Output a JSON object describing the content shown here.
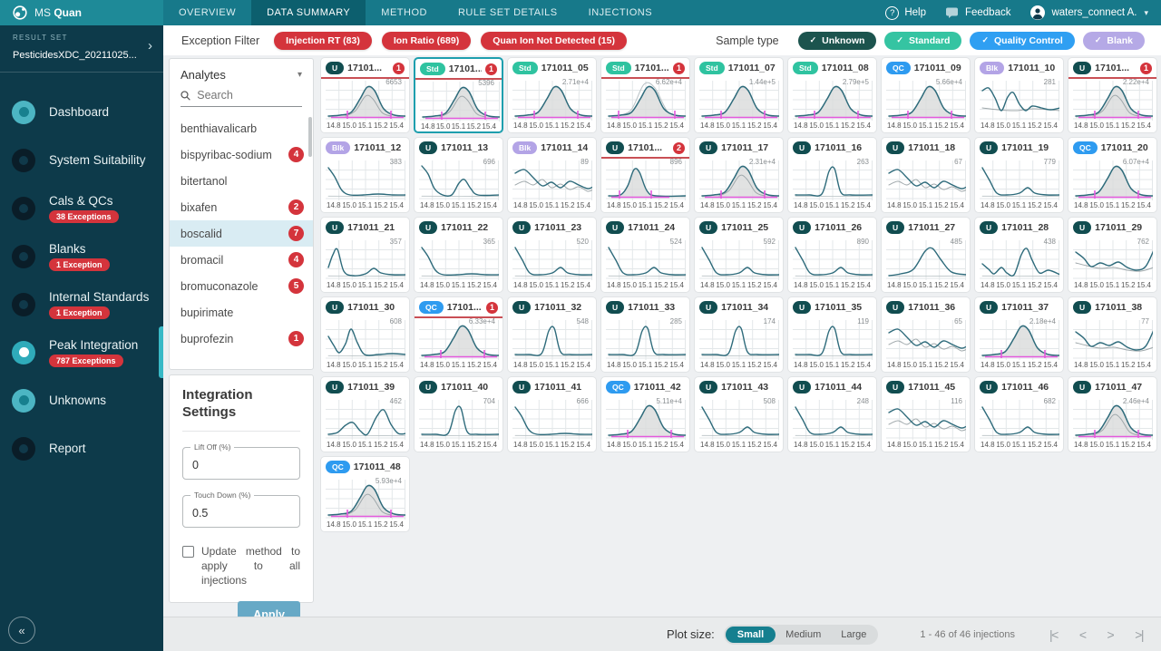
{
  "topbar": {
    "brand_prefix": "MS",
    "brand_bold": "Quan",
    "tabs": [
      {
        "label": "OVERVIEW",
        "active": false
      },
      {
        "label": "DATA SUMMARY",
        "active": true
      },
      {
        "label": "METHOD",
        "active": false
      },
      {
        "label": "RULE SET DETAILS",
        "active": false
      },
      {
        "label": "INJECTIONS",
        "active": false
      }
    ],
    "help_label": "Help",
    "feedback_label": "Feedback",
    "user_label": "waters_connect A."
  },
  "sidebar": {
    "result_set_label": "RESULT SET",
    "result_set_value": "PesticidesXDC_20211025...",
    "items": [
      {
        "label": "Dashboard",
        "badge": null,
        "icon": "teal-dot",
        "active": false
      },
      {
        "label": "System Suitability",
        "badge": null,
        "icon": "dark-donut",
        "active": false
      },
      {
        "label": "Cals & QCs",
        "badge": "38 Exceptions",
        "icon": "dark-donut",
        "active": false
      },
      {
        "label": "Blanks",
        "badge": "1 Exception",
        "icon": "dark-donut",
        "active": false
      },
      {
        "label": "Internal Standards",
        "badge": "1 Exception",
        "icon": "dark-donut",
        "active": false
      },
      {
        "label": "Peak Integration",
        "badge": "787 Exceptions",
        "icon": "active-dot",
        "active": true
      },
      {
        "label": "Unknowns",
        "badge": null,
        "icon": "teal-dot",
        "active": false
      },
      {
        "label": "Report",
        "badge": null,
        "icon": "dark-donut",
        "active": false
      }
    ]
  },
  "filterbar": {
    "exception_filter_label": "Exception Filter",
    "exception_pills": [
      "Injection RT (83)",
      "Ion Ratio (689)",
      "Quan Ion Not Detected (15)"
    ],
    "sample_type_label": "Sample type",
    "sample_types": [
      {
        "label": "Unknown",
        "color": "#1c544e"
      },
      {
        "label": "Standard",
        "color": "#35c4a2"
      },
      {
        "label": "Quality Control",
        "color": "#2f9ff2"
      },
      {
        "label": "Blank",
        "color": "#b5a9e6"
      }
    ]
  },
  "analytes": {
    "title": "Analytes",
    "search_placeholder": "Search",
    "items": [
      {
        "name": "benthiavalicarb",
        "count": null,
        "selected": false
      },
      {
        "name": "bispyribac-sodium",
        "count": 4,
        "selected": false
      },
      {
        "name": "bitertanol",
        "count": null,
        "selected": false
      },
      {
        "name": "bixafen",
        "count": 2,
        "selected": false
      },
      {
        "name": "boscalid",
        "count": 7,
        "selected": true
      },
      {
        "name": "bromacil",
        "count": 4,
        "selected": false
      },
      {
        "name": "bromuconazole",
        "count": 5,
        "selected": false
      },
      {
        "name": "bupirimate",
        "count": null,
        "selected": false
      },
      {
        "name": "buprofezin",
        "count": 1,
        "selected": false
      }
    ]
  },
  "integration": {
    "title": "Integration Settings",
    "lift_off_label": "Lift Off (%)",
    "lift_off_value": "0",
    "touch_down_label": "Touch Down (%)",
    "touch_down_value": "0.5",
    "checkbox_label": "Update method to apply to all injections",
    "checkbox_checked": false,
    "apply_label": "Apply"
  },
  "plot_ticks": [
    "14.8",
    "15.0",
    "15.1",
    "15.2",
    "15.4"
  ],
  "cards": [
    {
      "badge": "U",
      "name": "17101...",
      "exceptions": 1,
      "selected": false,
      "value": "6653",
      "shape": "peak-double"
    },
    {
      "badge": "Std",
      "name": "17101...",
      "exceptions": 1,
      "selected": true,
      "value": "5396",
      "shape": "peak-double"
    },
    {
      "badge": "Std",
      "name": "171011_05",
      "exceptions": 0,
      "selected": false,
      "value": "2.71e+4",
      "shape": "peak"
    },
    {
      "badge": "Std",
      "name": "17101...",
      "exceptions": 1,
      "selected": false,
      "value": "6.62e+4",
      "shape": "peak-outline"
    },
    {
      "badge": "Std",
      "name": "171011_07",
      "exceptions": 0,
      "selected": false,
      "value": "1.44e+5",
      "shape": "peak"
    },
    {
      "badge": "Std",
      "name": "171011_08",
      "exceptions": 0,
      "selected": false,
      "value": "2.79e+5",
      "shape": "peak"
    },
    {
      "badge": "QC",
      "name": "171011_09",
      "exceptions": 0,
      "selected": false,
      "value": "5.66e+4",
      "shape": "peak"
    },
    {
      "badge": "Blk",
      "name": "171011_10",
      "exceptions": 0,
      "selected": false,
      "value": "281",
      "shape": "blank-wiggle"
    },
    {
      "badge": "U",
      "name": "17101...",
      "exceptions": 1,
      "selected": false,
      "value": "2.22e+4",
      "shape": "peak-double"
    },
    {
      "badge": "Blk",
      "name": "171011_12",
      "exceptions": 0,
      "selected": false,
      "value": "383",
      "shape": "decay"
    },
    {
      "badge": "U",
      "name": "171011_13",
      "exceptions": 0,
      "selected": false,
      "value": "696",
      "shape": "decay-peak"
    },
    {
      "badge": "Blk",
      "name": "171011_14",
      "exceptions": 0,
      "selected": false,
      "value": "89",
      "shape": "wiggle2"
    },
    {
      "badge": "U",
      "name": "17101...",
      "exceptions": 2,
      "selected": false,
      "value": "896",
      "shape": "peak-narrow"
    },
    {
      "badge": "U",
      "name": "171011_17",
      "exceptions": 0,
      "selected": false,
      "value": "2.31e+4",
      "shape": "peak-double"
    },
    {
      "badge": "U",
      "name": "171011_16",
      "exceptions": 0,
      "selected": false,
      "value": "263",
      "shape": "spike"
    },
    {
      "badge": "U",
      "name": "171011_18",
      "exceptions": 0,
      "selected": false,
      "value": "67",
      "shape": "wiggle2"
    },
    {
      "badge": "U",
      "name": "171011_19",
      "exceptions": 0,
      "selected": false,
      "value": "779",
      "shape": "decay-bump"
    },
    {
      "badge": "QC",
      "name": "171011_20",
      "exceptions": 0,
      "selected": false,
      "value": "6.07e+4",
      "shape": "peak"
    },
    {
      "badge": "U",
      "name": "171011_21",
      "exceptions": 0,
      "selected": false,
      "value": "357",
      "shape": "lead-peak"
    },
    {
      "badge": "U",
      "name": "171011_22",
      "exceptions": 0,
      "selected": false,
      "value": "365",
      "shape": "decay"
    },
    {
      "badge": "U",
      "name": "171011_23",
      "exceptions": 0,
      "selected": false,
      "value": "520",
      "shape": "decay-bump"
    },
    {
      "badge": "U",
      "name": "171011_24",
      "exceptions": 0,
      "selected": false,
      "value": "524",
      "shape": "decay-bump"
    },
    {
      "badge": "U",
      "name": "171011_25",
      "exceptions": 0,
      "selected": false,
      "value": "592",
      "shape": "decay-bump"
    },
    {
      "badge": "U",
      "name": "171011_26",
      "exceptions": 0,
      "selected": false,
      "value": "890",
      "shape": "decay-bump"
    },
    {
      "badge": "U",
      "name": "171011_27",
      "exceptions": 0,
      "selected": false,
      "value": "485",
      "shape": "peak-plain"
    },
    {
      "badge": "U",
      "name": "171011_28",
      "exceptions": 0,
      "selected": false,
      "value": "438",
      "shape": "spike-lead"
    },
    {
      "badge": "U",
      "name": "171011_29",
      "exceptions": 0,
      "selected": false,
      "value": "762",
      "shape": "wiggle-end"
    },
    {
      "badge": "U",
      "name": "171011_30",
      "exceptions": 0,
      "selected": false,
      "value": "608",
      "shape": "v-peak"
    },
    {
      "badge": "QC",
      "name": "17101...",
      "exceptions": 1,
      "selected": false,
      "value": "6.33e+4",
      "shape": "peak"
    },
    {
      "badge": "U",
      "name": "171011_32",
      "exceptions": 0,
      "selected": false,
      "value": "548",
      "shape": "spike"
    },
    {
      "badge": "U",
      "name": "171011_33",
      "exceptions": 0,
      "selected": false,
      "value": "285",
      "shape": "spike"
    },
    {
      "badge": "U",
      "name": "171011_34",
      "exceptions": 0,
      "selected": false,
      "value": "174",
      "shape": "spike"
    },
    {
      "badge": "U",
      "name": "171011_35",
      "exceptions": 0,
      "selected": false,
      "value": "119",
      "shape": "spike"
    },
    {
      "badge": "U",
      "name": "171011_36",
      "exceptions": 0,
      "selected": false,
      "value": "65",
      "shape": "wiggle2"
    },
    {
      "badge": "U",
      "name": "171011_37",
      "exceptions": 0,
      "selected": false,
      "value": "2.18e+4",
      "shape": "peak"
    },
    {
      "badge": "U",
      "name": "171011_38",
      "exceptions": 0,
      "selected": false,
      "value": "77",
      "shape": "wiggle-end"
    },
    {
      "badge": "U",
      "name": "171011_39",
      "exceptions": 0,
      "selected": false,
      "value": "462",
      "shape": "two-humps"
    },
    {
      "badge": "U",
      "name": "171011_40",
      "exceptions": 0,
      "selected": false,
      "value": "704",
      "shape": "spike"
    },
    {
      "badge": "U",
      "name": "171011_41",
      "exceptions": 0,
      "selected": false,
      "value": "666",
      "shape": "decay"
    },
    {
      "badge": "QC",
      "name": "171011_42",
      "exceptions": 0,
      "selected": false,
      "value": "5.11e+4",
      "shape": "peak"
    },
    {
      "badge": "U",
      "name": "171011_43",
      "exceptions": 0,
      "selected": false,
      "value": "508",
      "shape": "decay-bump"
    },
    {
      "badge": "U",
      "name": "171011_44",
      "exceptions": 0,
      "selected": false,
      "value": "248",
      "shape": "decay-bump"
    },
    {
      "badge": "U",
      "name": "171011_45",
      "exceptions": 0,
      "selected": false,
      "value": "116",
      "shape": "wiggle2"
    },
    {
      "badge": "U",
      "name": "171011_46",
      "exceptions": 0,
      "selected": false,
      "value": "682",
      "shape": "decay-bump"
    },
    {
      "badge": "U",
      "name": "171011_47",
      "exceptions": 0,
      "selected": false,
      "value": "2.46e+4",
      "shape": "peak-double"
    },
    {
      "badge": "QC",
      "name": "171011_48",
      "exceptions": 0,
      "selected": false,
      "value": "5.93e+4",
      "shape": "peak-double"
    }
  ],
  "bottombar": {
    "plot_size_label": "Plot size:",
    "sizes": [
      {
        "label": "Small",
        "active": true
      },
      {
        "label": "Medium",
        "active": false
      },
      {
        "label": "Large",
        "active": false
      }
    ],
    "range_label": "1 - 46 of 46 injections",
    "pagination": [
      "first",
      "prev",
      "next",
      "last"
    ]
  },
  "colors": {
    "accent_teal": "#17798a",
    "exception_red": "#d4343c",
    "plot_line": "#2e6b7b",
    "plot_pink": "#e45add"
  }
}
